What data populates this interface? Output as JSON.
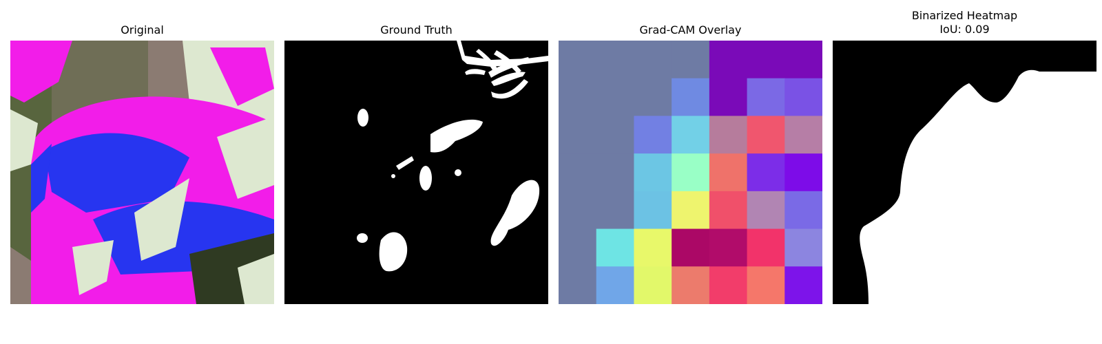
{
  "panels": [
    {
      "title": "Original"
    },
    {
      "title": "Ground Truth"
    },
    {
      "title": "Grad-CAM Overlay"
    },
    {
      "title": "Binarized Heatmap",
      "subtitle": "IoU: 0.09"
    }
  ],
  "gradcam_grid": [
    [
      "#6e7ba4",
      "#6e7ba4",
      "#6e7ba4",
      "#6e7ba4",
      "#7a0ab8",
      "#7a0ab8",
      "#7a0ab8"
    ],
    [
      "#6e7ba4",
      "#6e7ba4",
      "#6e7ba4",
      "#6f8ae2",
      "#7a0ab8",
      "#7b69e5",
      "#7a52e5"
    ],
    [
      "#6e7ba4",
      "#6e7ba4",
      "#7280e3",
      "#72d0e7",
      "#b67c9c",
      "#f0566e",
      "#b67ea6"
    ],
    [
      "#6e7ba4",
      "#6e7ba4",
      "#6cc6e4",
      "#99ffc6",
      "#ef726a",
      "#7c2de8",
      "#7d0ce8"
    ],
    [
      "#6e7ba4",
      "#6e7ba4",
      "#6cc2e4",
      "#eef46e",
      "#f0506a",
      "#b185b3",
      "#7a6ae6"
    ],
    [
      "#6e7ba4",
      "#6ee4e4",
      "#e8f86a",
      "#ab0866",
      "#b10c6a",
      "#f2336a",
      "#8c85e0"
    ],
    [
      "#6e7ba4",
      "#70a6e8",
      "#e2f86a",
      "#ec7b6c",
      "#f23d6a",
      "#f5776a",
      "#7d14ea"
    ]
  ],
  "colors": {
    "original_background": "#6f6e56",
    "magenta": "#f21de9",
    "blue": "#2735f0",
    "pale": "#dde8d0",
    "mask_black": "#000000",
    "mask_white": "#ffffff"
  }
}
